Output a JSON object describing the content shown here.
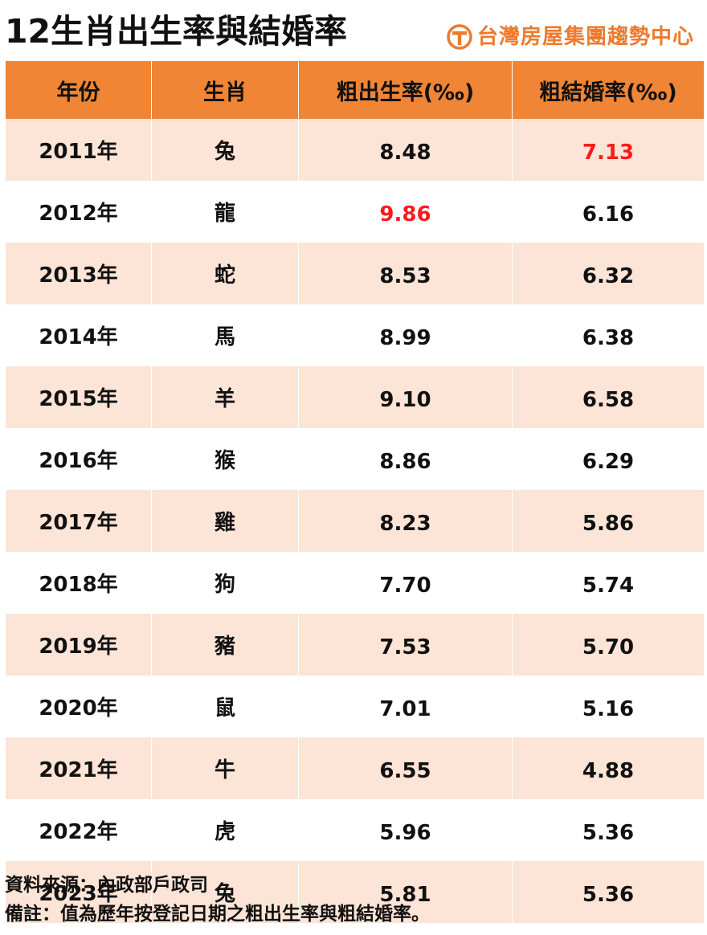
{
  "title": "12生肖出生率與結婚率",
  "brand": {
    "name": "台灣房屋集團趨勢中心",
    "logo_icon": "taiwan-realty-t-logo-icon",
    "color": "#ee7a2d"
  },
  "colors": {
    "header_bg": "#ef8535",
    "row_band": "#fce4d6",
    "highlight": "#ff1a1a"
  },
  "table": {
    "headers": [
      "年份",
      "生肖",
      "粗出生率(‰)",
      "粗結婚率(‰)"
    ],
    "rows": [
      {
        "year": "2011年",
        "zodiac": "兔",
        "birth_rate": "8.48",
        "marriage_rate": "7.13"
      },
      {
        "year": "2012年",
        "zodiac": "龍",
        "birth_rate": "9.86",
        "marriage_rate": "6.16"
      },
      {
        "year": "2013年",
        "zodiac": "蛇",
        "birth_rate": "8.53",
        "marriage_rate": "6.32"
      },
      {
        "year": "2014年",
        "zodiac": "馬",
        "birth_rate": "8.99",
        "marriage_rate": "6.38"
      },
      {
        "year": "2015年",
        "zodiac": "羊",
        "birth_rate": "9.10",
        "marriage_rate": "6.58"
      },
      {
        "year": "2016年",
        "zodiac": "猴",
        "birth_rate": "8.86",
        "marriage_rate": "6.29"
      },
      {
        "year": "2017年",
        "zodiac": "雞",
        "birth_rate": "8.23",
        "marriage_rate": "5.86"
      },
      {
        "year": "2018年",
        "zodiac": "狗",
        "birth_rate": "7.70",
        "marriage_rate": "5.74"
      },
      {
        "year": "2019年",
        "zodiac": "豬",
        "birth_rate": "7.53",
        "marriage_rate": "5.70"
      },
      {
        "year": "2020年",
        "zodiac": "鼠",
        "birth_rate": "7.01",
        "marriage_rate": "5.16"
      },
      {
        "year": "2021年",
        "zodiac": "牛",
        "birth_rate": "6.55",
        "marriage_rate": "4.88"
      },
      {
        "year": "2022年",
        "zodiac": "虎",
        "birth_rate": "5.96",
        "marriage_rate": "5.36"
      },
      {
        "year": "2023年",
        "zodiac": "兔",
        "birth_rate": "5.81",
        "marriage_rate": "5.36"
      }
    ],
    "highlighted": {
      "max_birth_rate_year": "2012年",
      "max_marriage_rate_year": "2011年"
    }
  },
  "footer": {
    "source": "資料來源：內政部戶政司",
    "note": "備註：值為歷年按登記日期之粗出生率與粗結婚率。"
  }
}
